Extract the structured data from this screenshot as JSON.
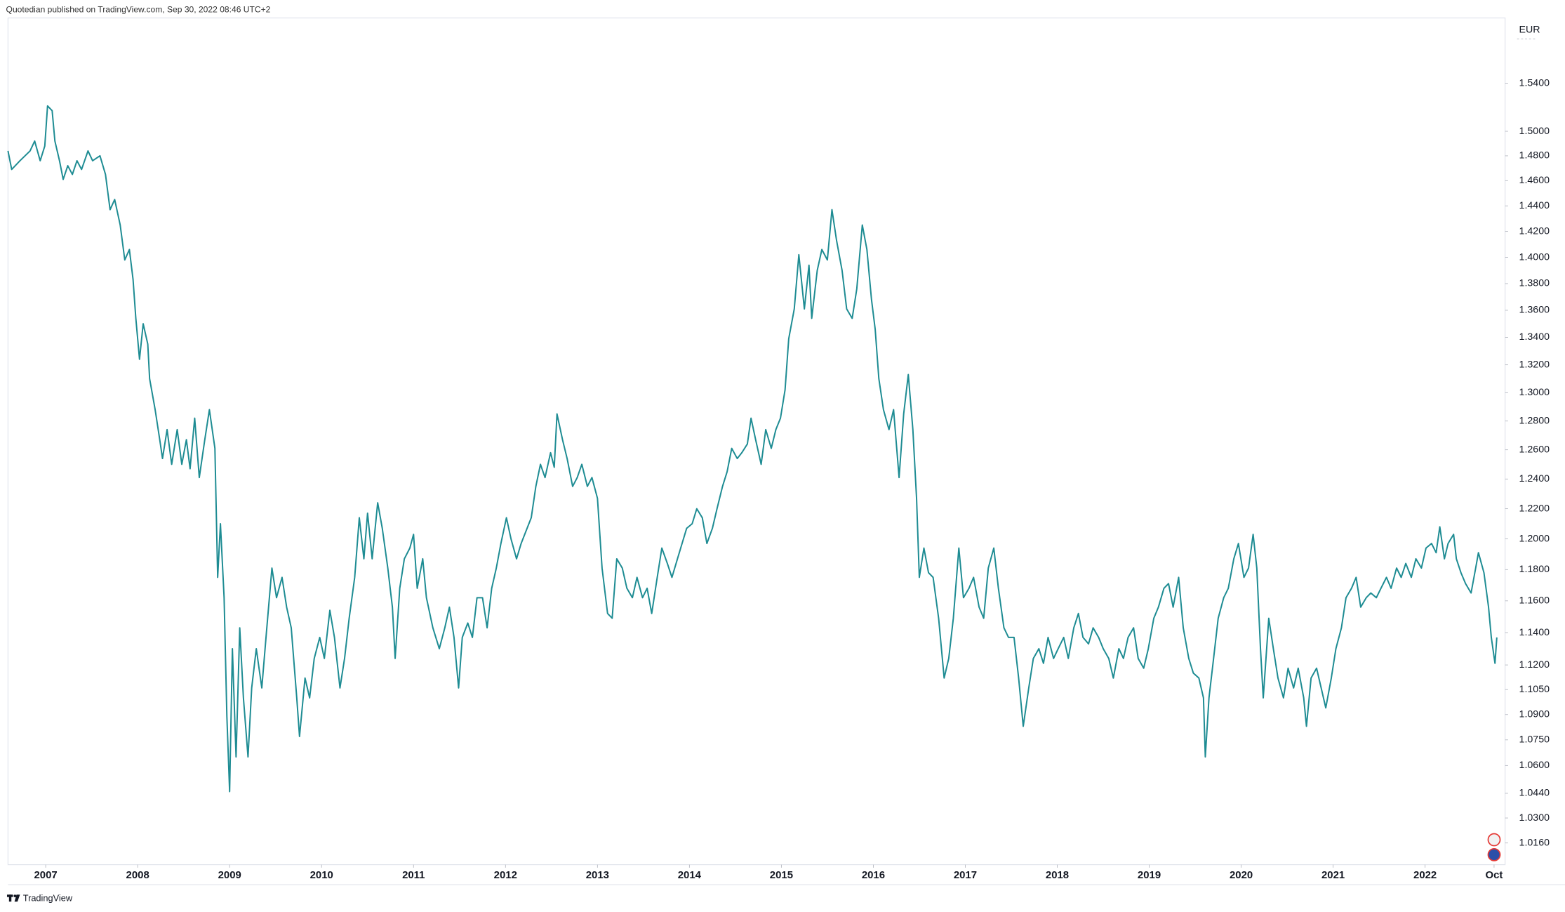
{
  "header": "Quotedian published on TradingView.com, Sep 30, 2022 08:46 UTC+2",
  "footer": "TradingView",
  "chart_data": {
    "type": "line",
    "unit_label": "EUR",
    "color": "#1e8c93",
    "log_scale": true,
    "grid": false,
    "xlim": [
      2006.59,
      2022.87
    ],
    "ylim": [
      1.004,
      1.596
    ],
    "xticks": [
      2007,
      2008,
      2009,
      2010,
      2011,
      2012,
      2013,
      2014,
      2015,
      2016,
      2017,
      2018,
      2019,
      2020,
      2021,
      2022,
      {
        "value": 2022.75,
        "label": "Oct"
      }
    ],
    "yticks": [
      {
        "value": 1.54,
        "label": "1.5400"
      },
      {
        "value": 1.5,
        "label": "1.5000"
      },
      {
        "value": 1.48,
        "label": "1.4800"
      },
      {
        "value": 1.46,
        "label": "1.4600"
      },
      {
        "value": 1.44,
        "label": "1.4400"
      },
      {
        "value": 1.42,
        "label": "1.4200"
      },
      {
        "value": 1.4,
        "label": "1.4000"
      },
      {
        "value": 1.38,
        "label": "1.3800"
      },
      {
        "value": 1.36,
        "label": "1.3600"
      },
      {
        "value": 1.34,
        "label": "1.3400"
      },
      {
        "value": 1.32,
        "label": "1.3200"
      },
      {
        "value": 1.3,
        "label": "1.3000"
      },
      {
        "value": 1.28,
        "label": "1.2800"
      },
      {
        "value": 1.26,
        "label": "1.2600"
      },
      {
        "value": 1.24,
        "label": "1.2400"
      },
      {
        "value": 1.22,
        "label": "1.2200"
      },
      {
        "value": 1.2,
        "label": "1.2000"
      },
      {
        "value": 1.18,
        "label": "1.1800"
      },
      {
        "value": 1.16,
        "label": "1.1600"
      },
      {
        "value": 1.14,
        "label": "1.1400"
      },
      {
        "value": 1.12,
        "label": "1.1200"
      },
      {
        "value": 1.105,
        "label": "1.1050"
      },
      {
        "value": 1.09,
        "label": "1.0900"
      },
      {
        "value": 1.075,
        "label": "1.0750"
      },
      {
        "value": 1.06,
        "label": "1.0600"
      },
      {
        "value": 1.044,
        "label": "1.0440"
      },
      {
        "value": 1.03,
        "label": "1.0300"
      },
      {
        "value": 1.016,
        "label": "1.0160"
      }
    ],
    "x": [
      2006.59,
      2006.63,
      2006.72,
      2006.83,
      2006.88,
      2006.94,
      2006.99,
      2007.02,
      2007.07,
      2007.1,
      2007.15,
      2007.19,
      2007.24,
      2007.29,
      2007.34,
      2007.39,
      2007.46,
      2007.51,
      2007.59,
      2007.65,
      2007.7,
      2007.75,
      2007.81,
      2007.86,
      2007.91,
      2007.95,
      2007.98,
      2008.02,
      2008.06,
      2008.11,
      2008.13,
      2008.19,
      2008.24,
      2008.27,
      2008.32,
      2008.37,
      2008.43,
      2008.48,
      2008.53,
      2008.57,
      2008.62,
      2008.67,
      2008.73,
      2008.78,
      2008.84,
      2008.87,
      2008.9,
      2008.94,
      2008.97,
      2009.0,
      2009.03,
      2009.07,
      2009.11,
      2009.15,
      2009.2,
      2009.24,
      2009.29,
      2009.35,
      2009.4,
      2009.46,
      2009.51,
      2009.57,
      2009.62,
      2009.67,
      2009.73,
      2009.76,
      2009.82,
      2009.87,
      2009.92,
      2009.98,
      2010.03,
      2010.09,
      2010.14,
      2010.2,
      2010.25,
      2010.3,
      2010.36,
      2010.41,
      2010.46,
      2010.5,
      2010.55,
      2010.61,
      2010.66,
      2010.72,
      2010.77,
      2010.8,
      2010.85,
      2010.9,
      2010.96,
      2011.0,
      2011.04,
      2011.1,
      2011.14,
      2011.21,
      2011.28,
      2011.34,
      2011.39,
      2011.44,
      2011.49,
      2011.53,
      2011.59,
      2011.64,
      2011.69,
      2011.75,
      2011.8,
      2011.85,
      2011.9,
      2011.95,
      2012.01,
      2012.06,
      2012.12,
      2012.17,
      2012.28,
      2012.33,
      2012.38,
      2012.43,
      2012.49,
      2012.53,
      2012.56,
      2012.62,
      2012.67,
      2012.73,
      2012.78,
      2012.83,
      2012.89,
      2012.94,
      2013.0,
      2013.05,
      2013.11,
      2013.16,
      2013.21,
      2013.27,
      2013.32,
      2013.38,
      2013.43,
      2013.49,
      2013.54,
      2013.59,
      2013.65,
      2013.7,
      2013.76,
      2013.81,
      2013.87,
      2013.92,
      2013.97,
      2014.03,
      2014.08,
      2014.14,
      2014.19,
      2014.25,
      2014.3,
      2014.36,
      2014.41,
      2014.46,
      2014.52,
      2014.57,
      2014.63,
      2014.67,
      2014.72,
      2014.78,
      2014.83,
      2014.89,
      2014.94,
      2014.99,
      2015.04,
      2015.08,
      2015.14,
      2015.19,
      2015.25,
      2015.3,
      2015.33,
      2015.39,
      2015.44,
      2015.5,
      2015.55,
      2015.6,
      2015.66,
      2015.71,
      2015.77,
      2015.82,
      2015.88,
      2015.93,
      2015.98,
      2016.02,
      2016.06,
      2016.11,
      2016.17,
      2016.22,
      2016.28,
      2016.33,
      2016.38,
      2016.43,
      2016.47,
      2016.5,
      2016.55,
      2016.6,
      2016.65,
      2016.71,
      2016.77,
      2016.82,
      2016.87,
      2016.93,
      2016.98,
      2017.04,
      2017.09,
      2017.15,
      2017.2,
      2017.25,
      2017.31,
      2017.36,
      2017.42,
      2017.47,
      2017.53,
      2017.58,
      2017.63,
      2017.69,
      2017.74,
      2017.8,
      2017.85,
      2017.9,
      2017.96,
      2018.01,
      2018.07,
      2018.12,
      2018.18,
      2018.23,
      2018.28,
      2018.34,
      2018.39,
      2018.45,
      2018.5,
      2018.56,
      2018.61,
      2018.67,
      2018.72,
      2018.77,
      2018.83,
      2018.88,
      2018.94,
      2018.99,
      2019.05,
      2019.1,
      2019.16,
      2019.21,
      2019.26,
      2019.32,
      2019.37,
      2019.43,
      2019.48,
      2019.54,
      2019.59,
      2019.61,
      2019.65,
      2019.7,
      2019.75,
      2019.81,
      2019.86,
      2019.92,
      2019.97,
      2020.03,
      2020.08,
      2020.13,
      2020.17,
      2020.21,
      2020.24,
      2020.3,
      2020.35,
      2020.4,
      2020.46,
      2020.51,
      2020.57,
      2020.62,
      2020.68,
      2020.71,
      2020.76,
      2020.82,
      2020.87,
      2020.92,
      2020.98,
      2021.03,
      2021.09,
      2021.14,
      2021.2,
      2021.25,
      2021.3,
      2021.36,
      2021.41,
      2021.47,
      2021.52,
      2021.58,
      2021.63,
      2021.69,
      2021.74,
      2021.79,
      2021.85,
      2021.9,
      2021.96,
      2022.01,
      2022.07,
      2022.12,
      2022.16,
      2022.21,
      2022.25,
      2022.31,
      2022.34,
      2022.39,
      2022.44,
      2022.5,
      2022.55,
      2022.58,
      2022.64,
      2022.69,
      2022.72,
      2022.76,
      2022.78
    ],
    "values": [
      1.484,
      1.469,
      1.476,
      1.484,
      1.492,
      1.476,
      1.488,
      1.521,
      1.517,
      1.492,
      1.476,
      1.461,
      1.472,
      1.465,
      1.476,
      1.469,
      1.484,
      1.476,
      1.48,
      1.465,
      1.437,
      1.445,
      1.425,
      1.398,
      1.406,
      1.383,
      1.354,
      1.324,
      1.35,
      1.335,
      1.31,
      1.288,
      1.267,
      1.254,
      1.274,
      1.25,
      1.274,
      1.25,
      1.267,
      1.247,
      1.282,
      1.241,
      1.267,
      1.288,
      1.261,
      1.175,
      1.21,
      1.162,
      1.089,
      1.045,
      1.13,
      1.065,
      1.143,
      1.1,
      1.065,
      1.106,
      1.13,
      1.106,
      1.14,
      1.181,
      1.162,
      1.175,
      1.156,
      1.143,
      1.1,
      1.077,
      1.112,
      1.1,
      1.124,
      1.137,
      1.124,
      1.154,
      1.137,
      1.106,
      1.124,
      1.149,
      1.175,
      1.214,
      1.187,
      1.217,
      1.187,
      1.224,
      1.207,
      1.181,
      1.156,
      1.124,
      1.168,
      1.187,
      1.194,
      1.203,
      1.168,
      1.187,
      1.162,
      1.143,
      1.13,
      1.143,
      1.156,
      1.137,
      1.106,
      1.137,
      1.146,
      1.137,
      1.162,
      1.162,
      1.143,
      1.168,
      1.181,
      1.197,
      1.214,
      1.2,
      1.187,
      1.197,
      1.214,
      1.235,
      1.25,
      1.241,
      1.258,
      1.248,
      1.285,
      1.267,
      1.254,
      1.235,
      1.241,
      1.25,
      1.235,
      1.241,
      1.227,
      1.181,
      1.152,
      1.149,
      1.187,
      1.181,
      1.168,
      1.162,
      1.175,
      1.162,
      1.168,
      1.152,
      1.175,
      1.194,
      1.184,
      1.175,
      1.187,
      1.197,
      1.207,
      1.21,
      1.22,
      1.214,
      1.197,
      1.207,
      1.22,
      1.235,
      1.245,
      1.261,
      1.254,
      1.258,
      1.264,
      1.282,
      1.267,
      1.25,
      1.274,
      1.261,
      1.274,
      1.282,
      1.302,
      1.339,
      1.361,
      1.402,
      1.361,
      1.394,
      1.354,
      1.39,
      1.406,
      1.398,
      1.437,
      1.413,
      1.39,
      1.361,
      1.354,
      1.376,
      1.425,
      1.406,
      1.368,
      1.346,
      1.31,
      1.288,
      1.274,
      1.288,
      1.241,
      1.285,
      1.313,
      1.274,
      1.227,
      1.175,
      1.194,
      1.178,
      1.175,
      1.149,
      1.112,
      1.124,
      1.149,
      1.194,
      1.162,
      1.168,
      1.175,
      1.156,
      1.149,
      1.181,
      1.194,
      1.168,
      1.143,
      1.137,
      1.137,
      1.112,
      1.083,
      1.106,
      1.124,
      1.13,
      1.121,
      1.137,
      1.124,
      1.13,
      1.137,
      1.124,
      1.143,
      1.152,
      1.137,
      1.133,
      1.143,
      1.137,
      1.13,
      1.124,
      1.112,
      1.13,
      1.124,
      1.137,
      1.143,
      1.124,
      1.118,
      1.13,
      1.149,
      1.156,
      1.168,
      1.171,
      1.156,
      1.175,
      1.143,
      1.124,
      1.115,
      1.112,
      1.1,
      1.065,
      1.1,
      1.124,
      1.149,
      1.162,
      1.168,
      1.187,
      1.197,
      1.175,
      1.181,
      1.203,
      1.181,
      1.13,
      1.1,
      1.149,
      1.13,
      1.112,
      1.1,
      1.118,
      1.106,
      1.118,
      1.1,
      1.083,
      1.112,
      1.118,
      1.106,
      1.094,
      1.112,
      1.13,
      1.143,
      1.162,
      1.168,
      1.175,
      1.156,
      1.162,
      1.165,
      1.162,
      1.168,
      1.175,
      1.168,
      1.181,
      1.175,
      1.184,
      1.175,
      1.187,
      1.181,
      1.194,
      1.197,
      1.191,
      1.208,
      1.187,
      1.197,
      1.203,
      1.187,
      1.178,
      1.171,
      1.165,
      1.181,
      1.191,
      1.178,
      1.156,
      1.137,
      1.121,
      1.137
    ]
  }
}
